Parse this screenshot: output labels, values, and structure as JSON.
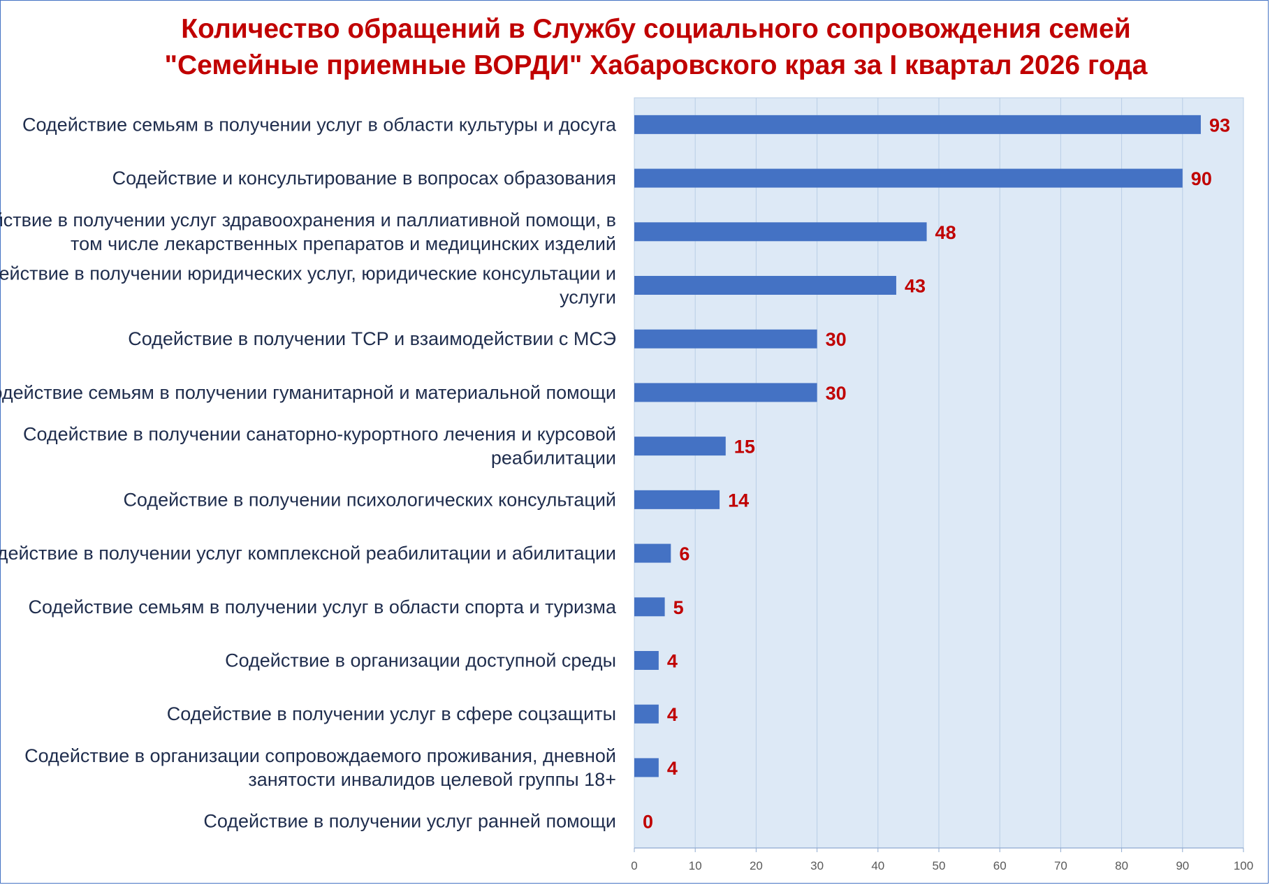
{
  "chart_data": {
    "type": "bar",
    "orientation": "horizontal",
    "title": [
      "Количество обращений в Службу социального сопровождения семей",
      "\"Семейные приемные ВОРДИ\" Хабаровского края за I квартал 2026 года"
    ],
    "categories": [
      [
        "Содействие семьям в получении услуг в области культуры и досуга"
      ],
      [
        "Содействие и консультирование в вопросах образования"
      ],
      [
        "Содействие в получении услуг здравоохранения и паллиативной помощи, в",
        "том числе лекарственных препаратов и медицинских изделий"
      ],
      [
        "Содействие в получении юридических услуг, юридические консультации и",
        "услуги"
      ],
      [
        "Содействие в получении ТСР и взаимодействии с МСЭ"
      ],
      [
        "Содействие семьям в получении гуманитарной и материальной помощи"
      ],
      [
        "Содействие в получении санаторно-курортного лечения и курсовой",
        "реабилитации"
      ],
      [
        "Содействие в получении психологических консультаций"
      ],
      [
        "Содействие в получении услуг комплексной реабилитации и абилитации"
      ],
      [
        "Содействие семьям в получении услуг в области спорта и туризма"
      ],
      [
        "Содействие в организации доступной среды"
      ],
      [
        "Содействие в получении услуг в сфере соцзащиты"
      ],
      [
        "Содействие в организации сопровождаемого проживания, дневной",
        "занятости инвалидов целевой группы 18+"
      ],
      [
        "Содействие в получении услуг ранней помощи"
      ]
    ],
    "values": [
      93,
      90,
      48,
      43,
      30,
      30,
      15,
      14,
      6,
      5,
      4,
      4,
      4,
      0
    ],
    "xlim": [
      0,
      100
    ],
    "ticks": [
      "0",
      "10",
      "20",
      "30",
      "40",
      "50",
      "60",
      "70",
      "80",
      "90",
      "100"
    ],
    "grid": true,
    "colors": {
      "bar": "#4472c4",
      "plot_background": "#dde9f6",
      "grid": "#b8cde6",
      "value_label": "#c00000",
      "title": "#c00000"
    }
  }
}
